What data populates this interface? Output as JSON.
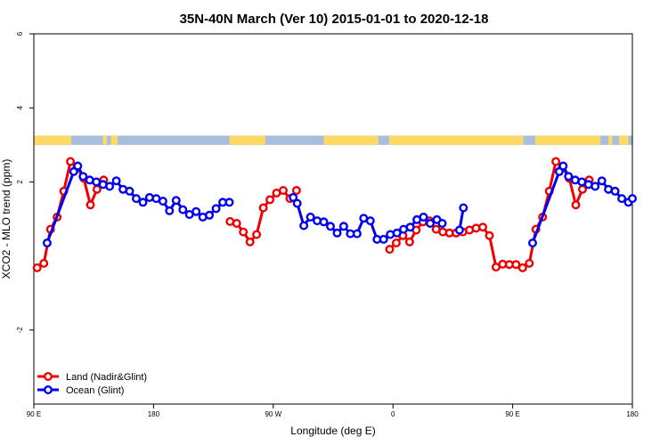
{
  "chart_data": {
    "type": "line",
    "title": "35N-40N March (Ver 10)   2015-01-01 to 2020-12-18",
    "xlabel": "Longitude (deg E)",
    "ylabel": "XCO2 - MLO trend (ppm)",
    "xlim": [
      90,
      540
    ],
    "ylim": [
      -4,
      6
    ],
    "grid": false,
    "legend_position": "bottom-left",
    "x_ticks": [
      {
        "value": 90,
        "label": "90 E"
      },
      {
        "value": 180,
        "label": "180"
      },
      {
        "value": 270,
        "label": "90 W"
      },
      {
        "value": 360,
        "label": "0"
      },
      {
        "value": 450,
        "label": "90 E"
      },
      {
        "value": 540,
        "label": "180"
      }
    ],
    "y_ticks": [
      {
        "value": -2,
        "label": "-2"
      },
      {
        "value": 2,
        "label": "2"
      },
      {
        "value": 4,
        "label": "4"
      },
      {
        "value": 6,
        "label": "6"
      }
    ],
    "land_ocean_strip": {
      "y_range": [
        3.0,
        3.25
      ],
      "land_color": "#FFD966",
      "ocean_color": "#A7BEDD",
      "land_x_ranges": [
        [
          90,
          118
        ],
        [
          142,
          145
        ],
        [
          148,
          153
        ],
        [
          237,
          264
        ],
        [
          308,
          349
        ],
        [
          357,
          458
        ],
        [
          467,
          516
        ],
        [
          522,
          525
        ],
        [
          530,
          537
        ]
      ]
    },
    "series": [
      {
        "name": "Land (Nadir&Glint)",
        "color": "#EE0000",
        "segments": [
          [
            [
              92.5,
              -0.32
            ],
            [
              97.5,
              -0.2
            ],
            [
              102.5,
              0.72
            ],
            [
              107.5,
              1.05
            ],
            [
              112.5,
              1.75
            ],
            [
              117.5,
              2.55
            ],
            [
              122.5,
              2.4
            ],
            [
              127.5,
              2.1
            ],
            [
              132.5,
              1.38
            ],
            [
              137.5,
              1.8
            ],
            [
              142.5,
              2.05
            ]
          ],
          [
            [
              237.5,
              0.93
            ],
            [
              242.5,
              0.88
            ],
            [
              247.5,
              0.65
            ],
            [
              252.5,
              0.38
            ],
            [
              257.5,
              0.58
            ],
            [
              262.5,
              1.3
            ],
            [
              267.5,
              1.52
            ],
            [
              272.5,
              1.7
            ],
            [
              277.5,
              1.77
            ],
            [
              282.5,
              1.55
            ],
            [
              287.5,
              1.77
            ]
          ],
          [
            [
              357.5,
              0.18
            ],
            [
              362.5,
              0.35
            ],
            [
              367.5,
              0.55
            ],
            [
              372.5,
              0.38
            ],
            [
              377.5,
              0.7
            ],
            [
              382.5,
              0.92
            ],
            [
              387.5,
              0.95
            ],
            [
              392.5,
              0.72
            ],
            [
              397.5,
              0.65
            ],
            [
              402.5,
              0.62
            ],
            [
              407.5,
              0.62
            ],
            [
              412.5,
              0.65
            ],
            [
              417.5,
              0.7
            ],
            [
              422.5,
              0.75
            ],
            [
              427.5,
              0.78
            ],
            [
              432.5,
              0.55
            ],
            [
              437.5,
              -0.3
            ],
            [
              442.5,
              -0.22
            ],
            [
              447.5,
              -0.23
            ],
            [
              452.5,
              -0.23
            ],
            [
              457.5,
              -0.32
            ],
            [
              462.5,
              -0.2
            ],
            [
              467.5,
              0.72
            ],
            [
              472.5,
              1.05
            ],
            [
              477.5,
              1.75
            ],
            [
              482.5,
              2.55
            ],
            [
              487.5,
              2.4
            ],
            [
              492.5,
              2.1
            ],
            [
              497.5,
              1.38
            ],
            [
              502.5,
              1.8
            ],
            [
              507.5,
              2.05
            ]
          ]
        ]
      },
      {
        "name": "Ocean (Glint)",
        "color": "#0000EE",
        "segments": [
          [
            [
              100,
              0.35
            ],
            [
              120,
              2.28
            ],
            [
              123,
              2.43
            ],
            [
              127,
              2.15
            ],
            [
              132,
              2.05
            ],
            [
              137,
              2.0
            ],
            [
              142,
              1.93
            ],
            [
              147,
              1.88
            ],
            [
              152,
              2.03
            ],
            [
              157,
              1.8
            ],
            [
              162,
              1.75
            ],
            [
              167,
              1.55
            ],
            [
              172,
              1.45
            ],
            [
              177,
              1.58
            ],
            [
              182,
              1.55
            ],
            [
              187,
              1.48
            ],
            [
              192,
              1.22
            ],
            [
              197,
              1.5
            ],
            [
              202,
              1.25
            ],
            [
              207,
              1.12
            ],
            [
              212,
              1.2
            ],
            [
              217,
              1.05
            ],
            [
              222,
              1.1
            ],
            [
              227,
              1.28
            ],
            [
              232,
              1.45
            ],
            [
              237,
              1.45
            ]
          ],
          [
            [
              285,
              1.58
            ],
            [
              288,
              1.42
            ],
            [
              293,
              0.82
            ],
            [
              298,
              1.05
            ],
            [
              303,
              0.95
            ],
            [
              308,
              0.92
            ],
            [
              313,
              0.8
            ],
            [
              318,
              0.62
            ],
            [
              323,
              0.8
            ],
            [
              328,
              0.6
            ],
            [
              333,
              0.6
            ],
            [
              338,
              1.02
            ],
            [
              343,
              0.95
            ],
            [
              348,
              0.45
            ],
            [
              353,
              0.45
            ],
            [
              358,
              0.58
            ],
            [
              363,
              0.62
            ],
            [
              368,
              0.72
            ],
            [
              373,
              0.78
            ],
            [
              378,
              0.98
            ],
            [
              383,
              1.05
            ],
            [
              388,
              0.88
            ],
            [
              393,
              0.98
            ],
            [
              397,
              0.88
            ]
          ],
          [
            [
              410,
              0.7
            ],
            [
              413,
              1.3
            ]
          ],
          [
            [
              465,
              0.35
            ],
            [
              485,
              2.28
            ],
            [
              488,
              2.43
            ],
            [
              492,
              2.15
            ],
            [
              497,
              2.05
            ],
            [
              502,
              2.0
            ],
            [
              507,
              1.93
            ],
            [
              512,
              1.88
            ],
            [
              517,
              2.03
            ],
            [
              522,
              1.8
            ],
            [
              527,
              1.75
            ],
            [
              532,
              1.55
            ],
            [
              537,
              1.45
            ],
            [
              540,
              1.55
            ]
          ]
        ]
      }
    ]
  }
}
